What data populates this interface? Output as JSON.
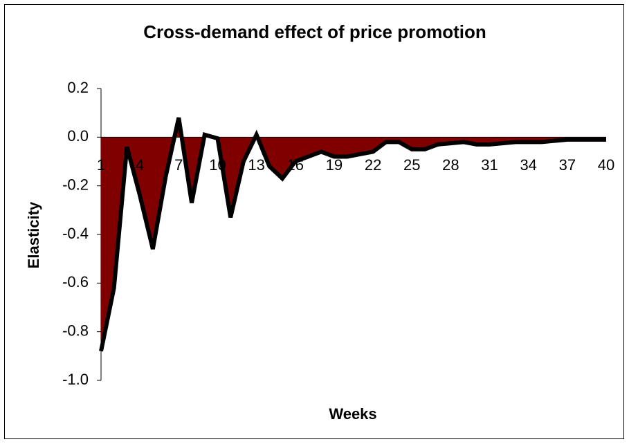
{
  "chart_data": {
    "type": "area-line",
    "title": "Cross-demand effect of price promotion",
    "x_label": "Weeks",
    "y_label": "Elasticity",
    "categories": [
      1,
      null,
      null,
      4,
      null,
      null,
      7,
      null,
      null,
      10,
      null,
      null,
      13,
      null,
      null,
      16,
      null,
      null,
      19,
      null,
      null,
      22,
      null,
      null,
      25,
      null,
      null,
      28,
      null,
      null,
      31,
      null,
      null,
      34,
      null,
      null,
      37,
      null,
      null,
      40
    ],
    "series": [
      {
        "name": "Elasticity",
        "color": "#000000",
        "fill": "#800000",
        "values": [
          -0.88,
          -0.62,
          -0.04,
          -0.24,
          -0.46,
          -0.16,
          0.08,
          -0.27,
          0.01,
          -0.005,
          -0.33,
          -0.1,
          0.01,
          -0.12,
          -0.17,
          -0.1,
          -0.08,
          -0.06,
          -0.08,
          -0.08,
          -0.07,
          -0.06,
          -0.02,
          -0.02,
          -0.05,
          -0.05,
          -0.03,
          -0.025,
          -0.02,
          -0.03,
          -0.03,
          -0.025,
          -0.02,
          -0.02,
          -0.02,
          -0.015,
          -0.01,
          -0.01,
          -0.01,
          -0.01
        ]
      }
    ],
    "ylim": [
      -1.0,
      0.2
    ],
    "yticks": [
      {
        "value": -1,
        "label": "-1.0"
      },
      -0.8,
      -0.6,
      -0.4,
      -0.2,
      {
        "value": 0,
        "label": "0.0"
      },
      0.2
    ],
    "grid": false
  }
}
